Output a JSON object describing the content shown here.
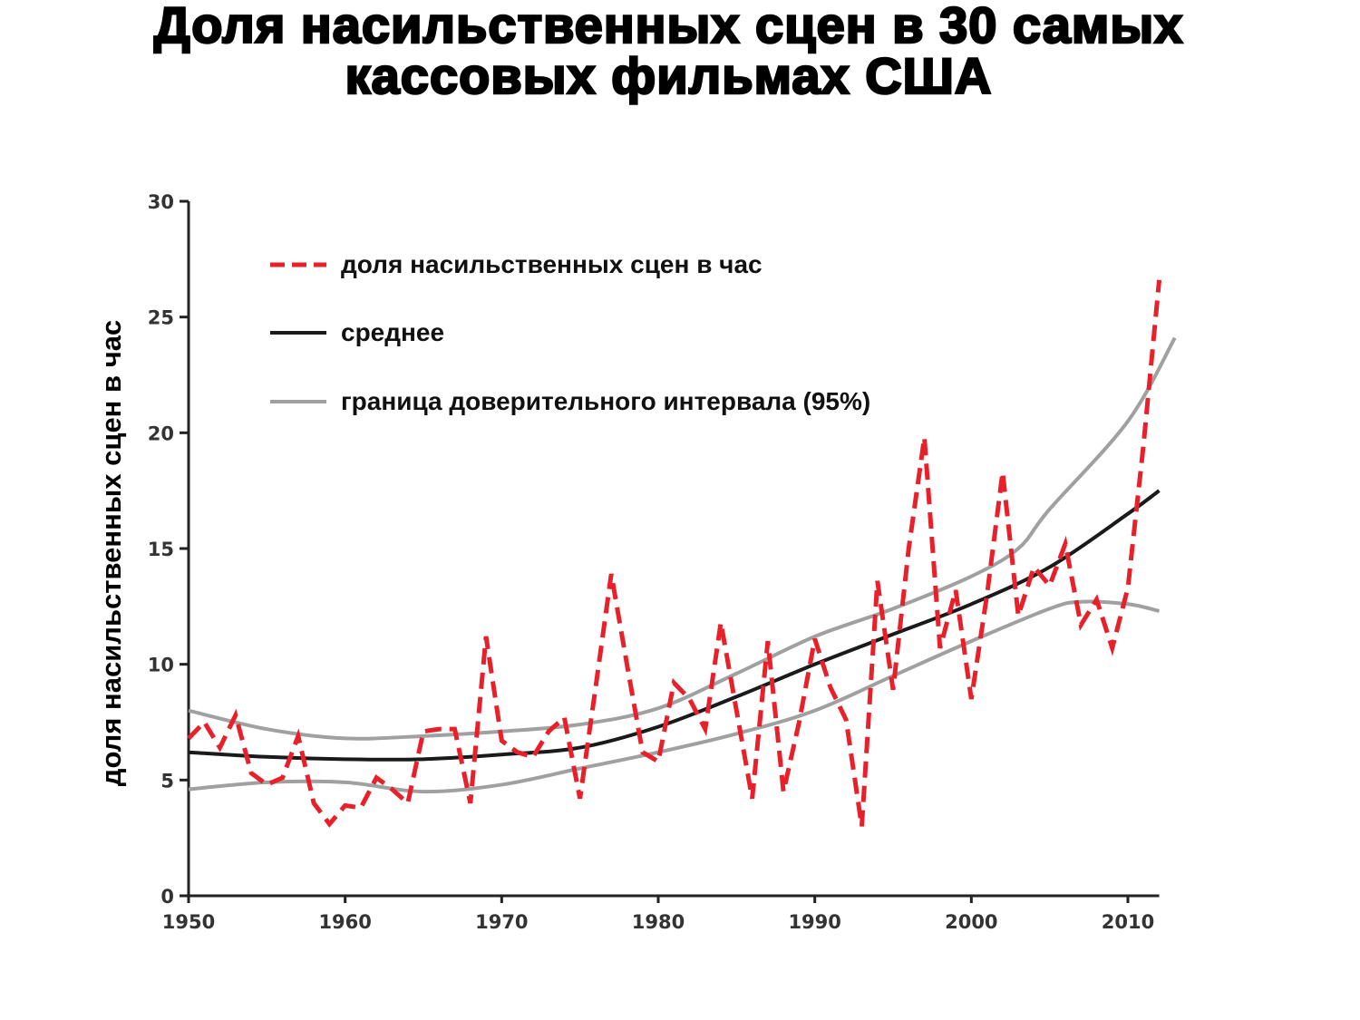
{
  "chart_data": {
    "type": "line",
    "title_lines": [
      "Доля насильственных сцен в 30 самых",
      "кассовых фильмах США"
    ],
    "xlabel": "",
    "ylabel": "доля насильственных сцен в час",
    "xlim": [
      1950,
      2012
    ],
    "ylim": [
      0,
      30
    ],
    "x_ticks": [
      1950,
      1960,
      1970,
      1980,
      1990,
      2000,
      2010
    ],
    "y_ticks": [
      0,
      5,
      10,
      15,
      20,
      25,
      30
    ],
    "grid": false,
    "legend_placement": "top-left",
    "colors": {
      "violence": "#e8202a",
      "mean": "#1a1a1a",
      "ci": "#a0a0a0"
    },
    "series": [
      {
        "name": "доля насильственных сцен в час",
        "style": "dashed",
        "x": [
          1950,
          1951,
          1952,
          1953,
          1954,
          1955,
          1956,
          1957,
          1958,
          1959,
          1960,
          1961,
          1962,
          1963,
          1964,
          1965,
          1966,
          1967,
          1968,
          1969,
          1970,
          1971,
          1972,
          1973,
          1974,
          1975,
          1976,
          1977,
          1978,
          1979,
          1980,
          1981,
          1982,
          1983,
          1984,
          1985,
          1986,
          1987,
          1988,
          1989,
          1990,
          1991,
          1992,
          1993,
          1994,
          1995,
          1996,
          1997,
          1998,
          1999,
          2000,
          2001,
          2002,
          2003,
          2004,
          2005,
          2006,
          2007,
          2008,
          2009,
          2010,
          2011,
          2012
        ],
        "y": [
          6.8,
          7.5,
          6.4,
          7.8,
          5.3,
          4.8,
          5.1,
          6.9,
          4.0,
          3.1,
          3.9,
          3.8,
          5.1,
          4.6,
          4.0,
          7.1,
          7.2,
          7.2,
          4.0,
          11.2,
          6.7,
          6.2,
          6.0,
          7.1,
          7.7,
          4.2,
          9.0,
          13.9,
          10.0,
          6.2,
          5.8,
          9.2,
          8.5,
          7.2,
          11.8,
          8.0,
          4.2,
          11.0,
          4.5,
          7.5,
          11.1,
          9.0,
          7.6,
          3.0,
          13.6,
          8.9,
          15.0,
          19.8,
          10.7,
          13.2,
          8.5,
          13.0,
          18.3,
          12.1,
          14.2,
          13.4,
          15.2,
          11.7,
          12.8,
          10.7,
          13.3,
          19.5,
          26.6
        ]
      },
      {
        "name": "среднее",
        "style": "solid",
        "x": [
          1950,
          1955,
          1960,
          1965,
          1970,
          1975,
          1980,
          1985,
          1990,
          1995,
          2000,
          2005,
          2010,
          2012
        ],
        "y": [
          6.2,
          6.0,
          5.9,
          5.9,
          6.1,
          6.4,
          7.3,
          8.6,
          10.0,
          11.3,
          12.6,
          14.2,
          16.5,
          17.5
        ]
      },
      {
        "name": "граница доверительного интервала (95%)",
        "style": "solid",
        "bound": "upper",
        "x": [
          1950,
          1955,
          1960,
          1965,
          1970,
          1975,
          1980,
          1985,
          1990,
          1995,
          2000,
          2003,
          2005,
          2010,
          2013
        ],
        "y": [
          8.0,
          7.2,
          6.8,
          6.9,
          7.1,
          7.4,
          8.1,
          9.6,
          11.2,
          12.4,
          13.8,
          15.0,
          16.7,
          20.5,
          24.1
        ]
      },
      {
        "name": "граница доверительного интервала (95%)",
        "style": "solid",
        "bound": "lower",
        "x": [
          1950,
          1955,
          1960,
          1965,
          1970,
          1975,
          1980,
          1985,
          1990,
          1995,
          2000,
          2005,
          2007,
          2010,
          2012
        ],
        "y": [
          4.6,
          4.9,
          4.9,
          4.5,
          4.8,
          5.5,
          6.2,
          7.0,
          8.0,
          9.5,
          11.0,
          12.4,
          12.7,
          12.6,
          12.3
        ]
      }
    ],
    "legend": [
      {
        "label": "доля насильственных сцен в час",
        "series": "violence"
      },
      {
        "label": "среднее",
        "series": "mean"
      },
      {
        "label": "граница доверительного интервала (95%)",
        "series": "ci"
      }
    ]
  }
}
